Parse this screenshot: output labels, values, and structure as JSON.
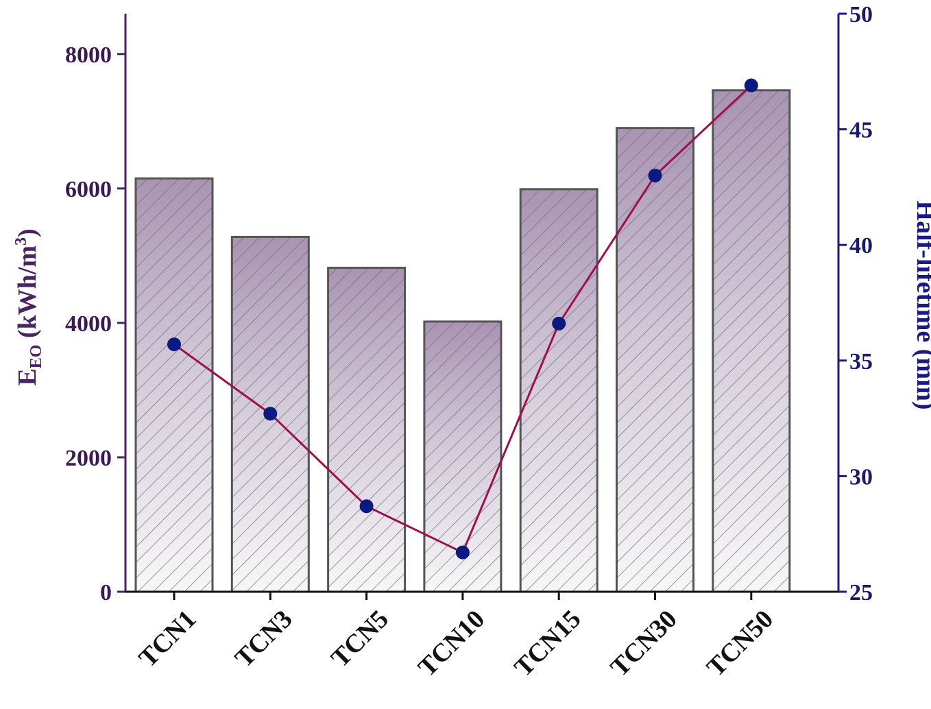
{
  "chart_data": {
    "type": "bar",
    "categories": [
      "TCN1",
      "TCN3",
      "TCN5",
      "TCN10",
      "TCN15",
      "TCN30",
      "TCN50"
    ],
    "series": [
      {
        "axis": "left",
        "type": "bar",
        "values": [
          6150,
          5280,
          4820,
          4020,
          5990,
          6900,
          7460
        ],
        "color": "#8a7096"
      },
      {
        "axis": "right",
        "type": "line",
        "values": [
          35.7,
          32.7,
          28.7,
          26.7,
          36.6,
          43.0,
          46.9
        ],
        "line_color": "#9b1050",
        "marker_color": "#0a1a80"
      }
    ],
    "y_left": {
      "label_main": "E",
      "label_sub": "EO",
      "label_rest": " (kWh/m",
      "label_sup": "3",
      "label_end": ")",
      "ylim": [
        0,
        8600
      ],
      "ticks": [
        0,
        2000,
        4000,
        6000,
        8000
      ],
      "color": "#4b2360"
    },
    "y_right": {
      "label": "Half-lifetime (min)",
      "ylim": [
        25,
        50
      ],
      "ticks": [
        25,
        30,
        35,
        40,
        45,
        50
      ],
      "color": "#1a1a80"
    },
    "bar_pattern": "diagonal-hatch",
    "grid": false,
    "legend": "none"
  }
}
